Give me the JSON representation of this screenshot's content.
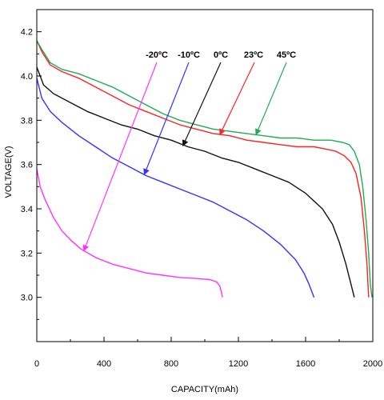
{
  "chart_data": {
    "type": "line",
    "xlabel": "CAPACITY(mAh)",
    "ylabel": "VOLTAGE(V)",
    "xlim": [
      0,
      2000
    ],
    "ylim": [
      2.8,
      4.3
    ],
    "x_ticks": [
      "0",
      "400",
      "800",
      "1200",
      "1600",
      "2000"
    ],
    "y_ticks": [
      "3.0",
      "3.2",
      "3.4",
      "3.6",
      "3.8",
      "4.0",
      "4.2"
    ],
    "grid": false,
    "series": [
      {
        "name": "-20ºC",
        "color": "#ff33ff",
        "x": [
          0,
          20,
          50,
          100,
          150,
          200,
          260,
          350,
          450,
          550,
          650,
          750,
          850,
          950,
          1030,
          1070,
          1090,
          1100,
          1105
        ],
        "y": [
          3.58,
          3.5,
          3.44,
          3.36,
          3.3,
          3.26,
          3.22,
          3.18,
          3.15,
          3.13,
          3.11,
          3.1,
          3.09,
          3.085,
          3.08,
          3.07,
          3.05,
          3.02,
          3.0
        ]
      },
      {
        "name": "-10ºC",
        "color": "#3333ff",
        "x": [
          0,
          30,
          80,
          150,
          250,
          350,
          450,
          550,
          650,
          750,
          850,
          950,
          1050,
          1150,
          1250,
          1350,
          1450,
          1540,
          1590,
          1620,
          1640,
          1650
        ],
        "y": [
          3.99,
          3.9,
          3.84,
          3.79,
          3.73,
          3.68,
          3.63,
          3.59,
          3.55,
          3.52,
          3.49,
          3.46,
          3.43,
          3.39,
          3.35,
          3.3,
          3.24,
          3.17,
          3.11,
          3.06,
          3.02,
          3.0
        ]
      },
      {
        "name": "0ºC",
        "color": "#111111",
        "x": [
          0,
          40,
          100,
          200,
          300,
          400,
          500,
          600,
          700,
          800,
          900,
          1000,
          1100,
          1200,
          1300,
          1400,
          1500,
          1600,
          1700,
          1760,
          1800,
          1840,
          1870,
          1890
        ],
        "y": [
          4.04,
          3.96,
          3.92,
          3.88,
          3.84,
          3.81,
          3.78,
          3.76,
          3.73,
          3.71,
          3.68,
          3.66,
          3.63,
          3.61,
          3.58,
          3.55,
          3.52,
          3.47,
          3.4,
          3.33,
          3.25,
          3.15,
          3.06,
          3.0
        ]
      },
      {
        "name": "23ºC",
        "color": "#ff2222",
        "x": [
          0,
          30,
          80,
          150,
          250,
          350,
          450,
          550,
          650,
          750,
          850,
          950,
          1050,
          1150,
          1250,
          1350,
          1450,
          1550,
          1650,
          1720,
          1780,
          1830,
          1870,
          1900,
          1930,
          1950,
          1965,
          1975
        ],
        "y": [
          4.16,
          4.11,
          4.05,
          4.02,
          3.99,
          3.95,
          3.91,
          3.87,
          3.84,
          3.81,
          3.78,
          3.76,
          3.74,
          3.73,
          3.71,
          3.7,
          3.69,
          3.68,
          3.68,
          3.67,
          3.66,
          3.64,
          3.61,
          3.56,
          3.45,
          3.3,
          3.15,
          3.0
        ]
      },
      {
        "name": "45ºC",
        "color": "#22aa55",
        "x": [
          0,
          30,
          80,
          150,
          250,
          350,
          450,
          550,
          650,
          750,
          850,
          950,
          1050,
          1150,
          1250,
          1350,
          1450,
          1550,
          1650,
          1750,
          1820,
          1860,
          1890,
          1920,
          1940,
          1960,
          1975,
          1985,
          1995
        ],
        "y": [
          4.16,
          4.12,
          4.06,
          4.03,
          4.01,
          3.98,
          3.95,
          3.91,
          3.87,
          3.83,
          3.8,
          3.78,
          3.76,
          3.75,
          3.74,
          3.73,
          3.72,
          3.72,
          3.71,
          3.71,
          3.7,
          3.69,
          3.66,
          3.6,
          3.5,
          3.35,
          3.2,
          3.06,
          3.0
        ]
      }
    ],
    "annotations": [
      {
        "series": "-20ºC",
        "text": "-20ºC",
        "point": [
          280,
          3.21
        ]
      },
      {
        "series": "-10ºC",
        "text": "-10ºC",
        "point": [
          640,
          3.555
        ]
      },
      {
        "series": "0ºC",
        "text": "0ºC",
        "point": [
          870,
          3.685
        ]
      },
      {
        "series": "23ºC",
        "text": "23ºC",
        "point": [
          1090,
          3.735
        ]
      },
      {
        "series": "45ºC",
        "text": "45ºC",
        "point": [
          1305,
          3.735
        ]
      }
    ]
  }
}
